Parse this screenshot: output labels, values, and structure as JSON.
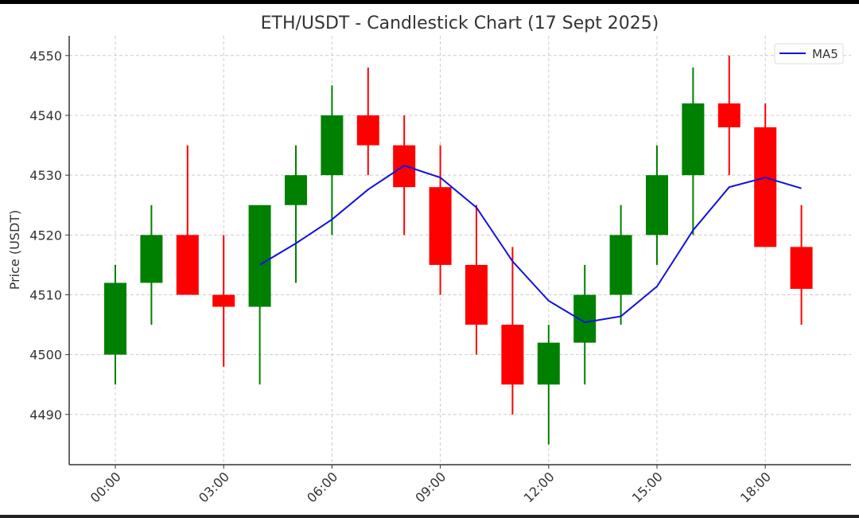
{
  "chart_data": {
    "type": "candlestick",
    "title": "ETH/USDT - Candlestick Chart (17 Sept 2025)",
    "xlabel": "",
    "ylabel": "Price (USDT)",
    "x": [
      "00:00",
      "01:00",
      "02:00",
      "03:00",
      "04:00",
      "05:00",
      "06:00",
      "07:00",
      "08:00",
      "09:00",
      "10:00",
      "11:00",
      "12:00",
      "13:00",
      "14:00",
      "15:00",
      "16:00",
      "17:00",
      "18:00",
      "19:00"
    ],
    "x_tick_labels": [
      "00:00",
      "03:00",
      "06:00",
      "09:00",
      "12:00",
      "15:00",
      "18:00"
    ],
    "y_ticks": [
      4490,
      4500,
      4510,
      4520,
      4530,
      4540,
      4550
    ],
    "ylim": [
      4481.6,
      4553.3
    ],
    "grid": true,
    "legend_position": "top-right",
    "colors": {
      "up": "#008000",
      "down": "#ff0000",
      "ma": "#1010e0"
    },
    "open": [
      4500,
      4512,
      4520,
      4510,
      4508,
      4525,
      4530,
      4540,
      4535,
      4528,
      4515,
      4505,
      4495,
      4502,
      4510,
      4520,
      4530,
      4542,
      4538,
      4518
    ],
    "high": [
      4515,
      4525,
      4535,
      4520,
      4525,
      4535,
      4545,
      4548,
      4540,
      4535,
      4525,
      4518,
      4505,
      4515,
      4525,
      4535,
      4548,
      4550,
      4542,
      4525
    ],
    "low": [
      4495,
      4505,
      4510,
      4498,
      4495,
      4512,
      4520,
      4530,
      4520,
      4510,
      4500,
      4490,
      4485,
      4495,
      4505,
      4515,
      4520,
      4530,
      4518,
      4505
    ],
    "close": [
      4512,
      4520,
      4510,
      4508,
      4525,
      4530,
      4540,
      4535,
      4528,
      4515,
      4505,
      4495,
      4502,
      4510,
      4520,
      4530,
      4542,
      4538,
      4518,
      4511
    ],
    "series": [
      {
        "name": "MA5",
        "values": [
          null,
          null,
          null,
          null,
          4515,
          4518.6,
          4522.6,
          4527.6,
          4531.6,
          4529.6,
          4524.6,
          4515.6,
          4509,
          4505.4,
          4506.4,
          4511.4,
          4520.8,
          4528,
          4529.6,
          4527.8
        ]
      }
    ]
  }
}
